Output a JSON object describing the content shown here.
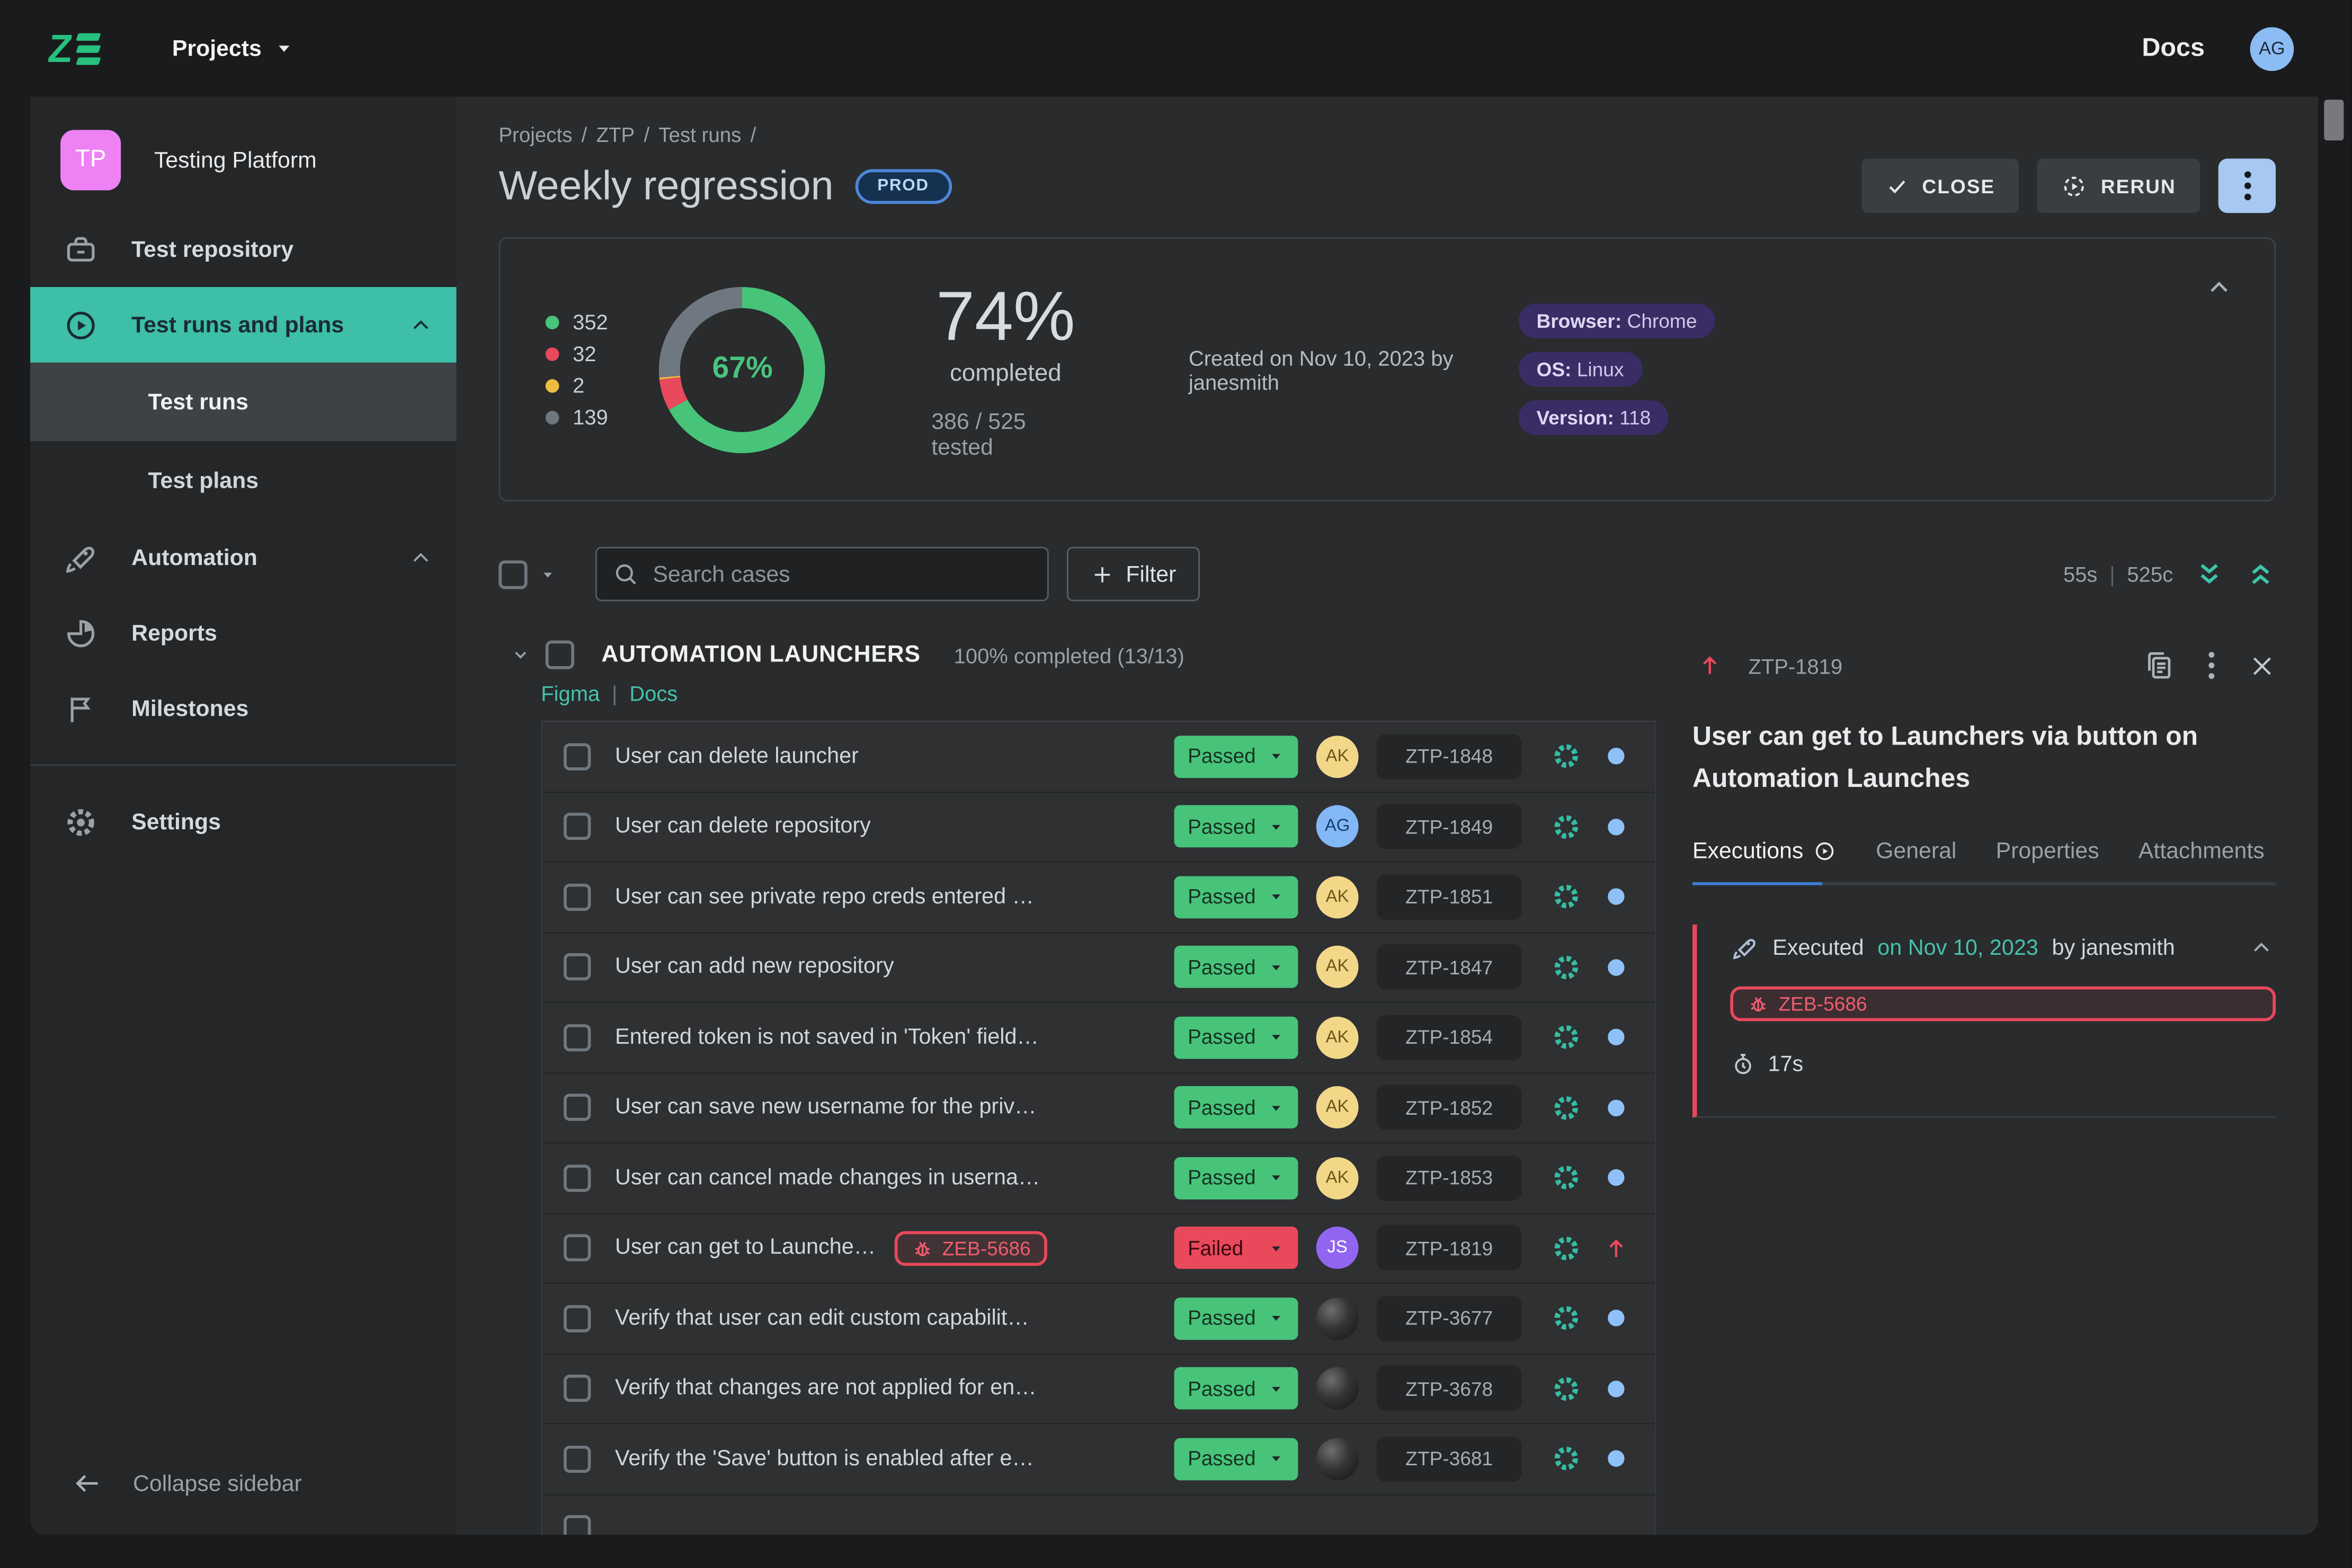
{
  "topbar": {
    "projects_label": "Projects",
    "docs_label": "Docs",
    "avatar_initials": "AG"
  },
  "sidebar": {
    "project": {
      "initials": "TP",
      "name": "Testing Platform"
    },
    "items": [
      {
        "icon": "repository-icon",
        "label": "Test repository"
      },
      {
        "icon": "play-circle-icon",
        "label": "Test runs and plans",
        "active": true,
        "expanded": true
      },
      {
        "sub": true,
        "label": "Test runs",
        "selected": true
      },
      {
        "sub": true,
        "label": "Test plans"
      },
      {
        "icon": "rocket-icon",
        "label": "Automation",
        "expanded": true
      },
      {
        "icon": "pie-chart-icon",
        "label": "Reports"
      },
      {
        "icon": "flag-icon",
        "label": "Milestones"
      },
      {
        "divider": true
      },
      {
        "icon": "gear-icon",
        "label": "Settings"
      }
    ],
    "collapse_label": "Collapse sidebar"
  },
  "header": {
    "breadcrumbs": [
      "Projects",
      "ZTP",
      "Test runs"
    ],
    "title": "Weekly regression",
    "env_badge": "PROD",
    "close_label": "CLOSE",
    "rerun_label": "RERUN"
  },
  "summary": {
    "chart_data": {
      "type": "donut",
      "center_label": "67%",
      "series": [
        {
          "value": 352,
          "color": "#47c479"
        },
        {
          "value": 32,
          "color": "#e8495b"
        },
        {
          "value": 2,
          "color": "#eebd3f"
        },
        {
          "value": 139,
          "color": "#6f7880"
        }
      ]
    },
    "completed_pct": "74%",
    "completed_label": "completed",
    "tested_label": "386 / 525 tested",
    "created_label": "Created on Nov 10, 2023 by janesmith",
    "env_badges": [
      {
        "label": "Browser",
        "value": "Chrome"
      },
      {
        "label": "OS",
        "value": "Linux"
      },
      {
        "label": "Version",
        "value": "118"
      }
    ]
  },
  "toolbar": {
    "search_placeholder": "Search cases",
    "filter_label": "Filter",
    "duration": "55s",
    "cases_count": "525c"
  },
  "section": {
    "title": "AUTOMATION LAUNCHERS",
    "completion": "100% completed (13/13)",
    "links": [
      "Figma",
      "Docs"
    ]
  },
  "table": {
    "rows": [
      {
        "title": "User can delete launcher",
        "status": "Passed",
        "assignee": {
          "initials": "AK",
          "bg": "#f3d789",
          "fg": "#6d5716"
        },
        "ticket": "ZTP-1848",
        "trailing": "dot"
      },
      {
        "title": "User can delete repository",
        "status": "Passed",
        "assignee": {
          "initials": "AG",
          "bg": "#83b7f6",
          "fg": "#14406e"
        },
        "ticket": "ZTP-1849",
        "trailing": "dot"
      },
      {
        "title": "User can see private repo creds entered …",
        "status": "Passed",
        "assignee": {
          "initials": "AK",
          "bg": "#f3d789",
          "fg": "#6d5716"
        },
        "ticket": "ZTP-1851",
        "trailing": "dot"
      },
      {
        "title": "User can add new repository",
        "status": "Passed",
        "assignee": {
          "initials": "AK",
          "bg": "#f3d789",
          "fg": "#6d5716"
        },
        "ticket": "ZTP-1847",
        "trailing": "dot"
      },
      {
        "title": "Entered token is not saved in 'Token' field…",
        "status": "Passed",
        "assignee": {
          "initials": "AK",
          "bg": "#f3d789",
          "fg": "#6d5716"
        },
        "ticket": "ZTP-1854",
        "trailing": "dot"
      },
      {
        "title": "User can save new username for the priv…",
        "status": "Passed",
        "assignee": {
          "initials": "AK",
          "bg": "#f3d789",
          "fg": "#6d5716"
        },
        "ticket": "ZTP-1852",
        "trailing": "dot"
      },
      {
        "title": "User can cancel made changes in userna…",
        "status": "Passed",
        "assignee": {
          "initials": "AK",
          "bg": "#f3d789",
          "fg": "#6d5716"
        },
        "ticket": "ZTP-1853",
        "trailing": "dot"
      },
      {
        "title": "User can get to Launche…",
        "bug": "ZEB-5686",
        "status": "Failed",
        "assignee": {
          "initials": "JS",
          "bg": "#9165f0",
          "fg": "#ffffff"
        },
        "ticket": "ZTP-1819",
        "trailing": "arrow-up"
      },
      {
        "title": "Verify that user can edit custom capabilit…",
        "status": "Passed",
        "assignee": {
          "photo": true
        },
        "ticket": "ZTP-3677",
        "trailing": "dot"
      },
      {
        "title": "Verify that changes are not applied for en…",
        "status": "Passed",
        "assignee": {
          "photo": true
        },
        "ticket": "ZTP-3678",
        "trailing": "dot"
      },
      {
        "title": "Verify the 'Save' button is enabled after e…",
        "status": "Passed",
        "assignee": {
          "photo": true
        },
        "ticket": "ZTP-3681",
        "trailing": "dot"
      }
    ]
  },
  "detail": {
    "ticket": "ZTP-1819",
    "title": "User can get to Launchers via button on Automation Launches",
    "tabs": [
      "Executions",
      "General",
      "Properties",
      "Attachments"
    ],
    "active_tab": "Executions",
    "execution": {
      "prefix": "Executed",
      "date_link": "on Nov 10, 2023",
      "suffix": "by janesmith",
      "bug": "ZEB-5686",
      "duration": "17s"
    }
  }
}
